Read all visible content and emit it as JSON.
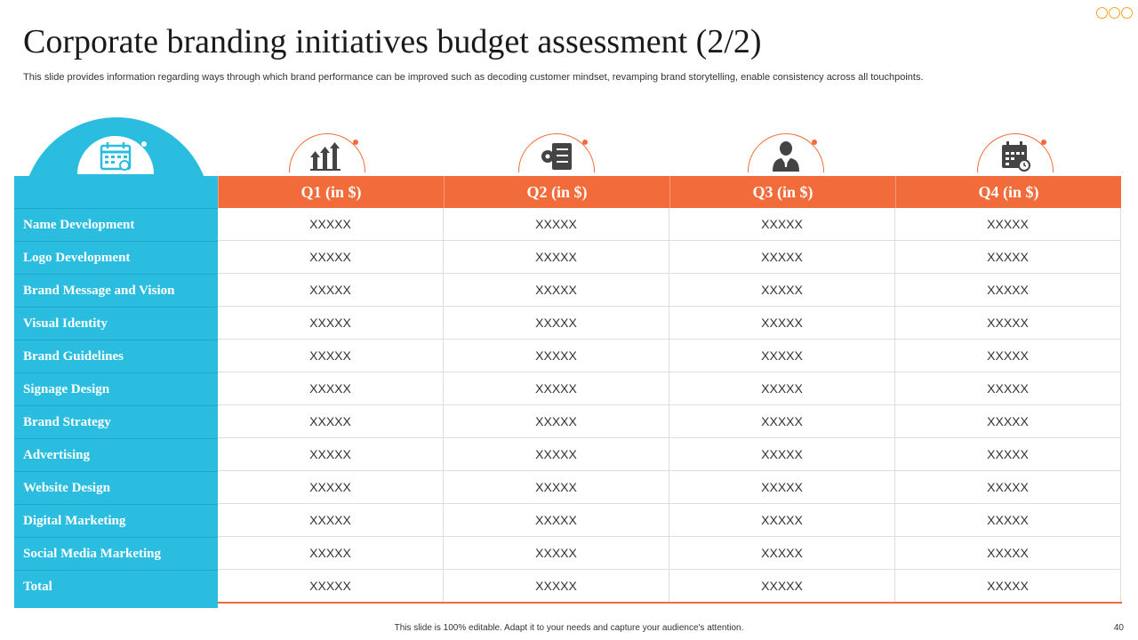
{
  "title": "Corporate branding initiatives budget assessment (2/2)",
  "subtitle": "This slide provides information regarding ways through which brand performance can be improved such as decoding customer mindset, revamping brand storytelling, enable consistency across all touchpoints.",
  "colors": {
    "accent_blue": "#2bbde0",
    "accent_orange": "#f26b3a"
  },
  "header_icons": [
    "calendar-icon",
    "growth-bars-icon",
    "checklist-gear-icon",
    "businessman-icon",
    "calendar-clock-icon"
  ],
  "table": {
    "columns": [
      "Q1 (in $)",
      "Q2 (in $)",
      "Q3 (in $)",
      "Q4 (in $)"
    ],
    "rows": [
      {
        "label": "Name Development",
        "values": [
          "XXXXX",
          "XXXXX",
          "XXXXX",
          "XXXXX"
        ]
      },
      {
        "label": "Logo Development",
        "values": [
          "XXXXX",
          "XXXXX",
          "XXXXX",
          "XXXXX"
        ]
      },
      {
        "label": "Brand Message and Vision",
        "values": [
          "XXXXX",
          "XXXXX",
          "XXXXX",
          "XXXXX"
        ]
      },
      {
        "label": "Visual Identity",
        "values": [
          "XXXXX",
          "XXXXX",
          "XXXXX",
          "XXXXX"
        ]
      },
      {
        "label": "Brand Guidelines",
        "values": [
          "XXXXX",
          "XXXXX",
          "XXXXX",
          "XXXXX"
        ]
      },
      {
        "label": "Signage Design",
        "values": [
          "XXXXX",
          "XXXXX",
          "XXXXX",
          "XXXXX"
        ]
      },
      {
        "label": "Brand Strategy",
        "values": [
          "XXXXX",
          "XXXXX",
          "XXXXX",
          "XXXXX"
        ]
      },
      {
        "label": "Advertising",
        "values": [
          "XXXXX",
          "XXXXX",
          "XXXXX",
          "XXXXX"
        ]
      },
      {
        "label": "Website Design",
        "values": [
          "XXXXX",
          "XXXXX",
          "XXXXX",
          "XXXXX"
        ]
      },
      {
        "label": "Digital Marketing",
        "values": [
          "XXXXX",
          "XXXXX",
          "XXXXX",
          "XXXXX"
        ]
      },
      {
        "label": "Social Media Marketing",
        "values": [
          "XXXXX",
          "XXXXX",
          "XXXXX",
          "XXXXX"
        ]
      },
      {
        "label": "Total",
        "values": [
          "XXXXX",
          "XXXXX",
          "XXXXX",
          "XXXXX"
        ]
      }
    ]
  },
  "footer": "This slide is 100% editable. Adapt it to your needs and capture your audience's attention.",
  "page_number": "40"
}
